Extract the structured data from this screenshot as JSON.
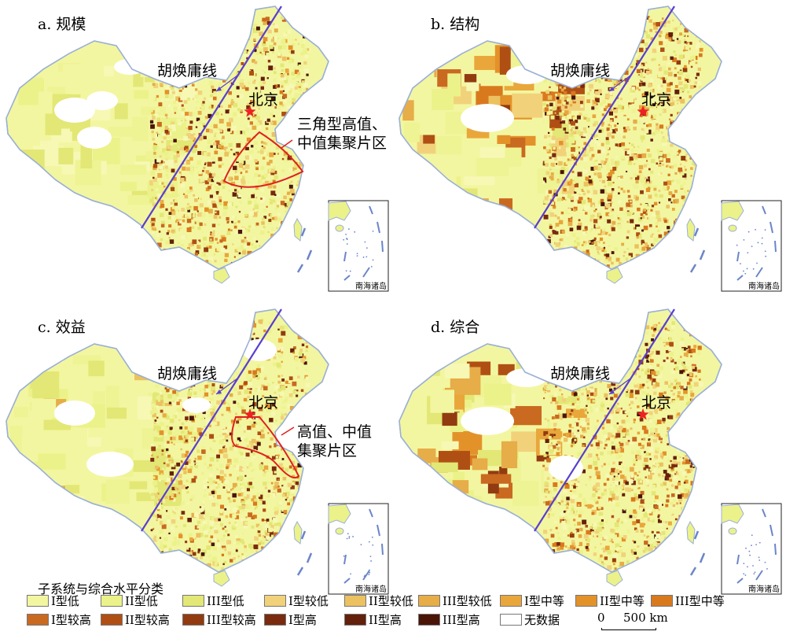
{
  "panels": [
    {
      "id": "a",
      "title": "a. 规模",
      "hu_line_label": "胡焕庸线",
      "beijing_label": "北京",
      "annotation": "三角型高值、中值集聚片区",
      "inset_label": "南海诸岛"
    },
    {
      "id": "b",
      "title": "b. 结构",
      "hu_line_label": "胡焕庸线",
      "beijing_label": "北京",
      "annotation": "",
      "inset_label": "南海诸岛"
    },
    {
      "id": "c",
      "title": "c. 效益",
      "hu_line_label": "胡焕庸线",
      "beijing_label": "北京",
      "annotation": "高值、中值集聚片区",
      "inset_label": "南海诸岛"
    },
    {
      "id": "d",
      "title": "d. 综合",
      "hu_line_label": "胡焕庸线",
      "beijing_label": "北京",
      "annotation": "",
      "inset_label": "南海诸岛"
    }
  ],
  "annotation_lines": {
    "a": [
      "三角型高值、",
      "中值集聚片区"
    ],
    "c": [
      "高值、中值",
      "集聚片区"
    ]
  },
  "legend": {
    "title": "子系统与综合水平分类",
    "items": [
      {
        "label": "I型低",
        "color": "#f3f6a0"
      },
      {
        "label": "II型低",
        "color": "#ecf28a"
      },
      {
        "label": "III型低",
        "color": "#e3e775"
      },
      {
        "label": "I型较低",
        "color": "#f1d27a"
      },
      {
        "label": "II型较低",
        "color": "#ecc160"
      },
      {
        "label": "III型较低",
        "color": "#e6ad48"
      },
      {
        "label": "I型中等",
        "color": "#e9a63b"
      },
      {
        "label": "II型中等",
        "color": "#e3922a"
      },
      {
        "label": "III型中等",
        "color": "#d9791e"
      },
      {
        "label": "I型较高",
        "color": "#c96a20"
      },
      {
        "label": "II型较高",
        "color": "#b04f14"
      },
      {
        "label": "III型较高",
        "color": "#923b10"
      },
      {
        "label": "I型高",
        "color": "#7a2a0e"
      },
      {
        "label": "II型高",
        "color": "#63200a"
      },
      {
        "label": "III型高",
        "color": "#4a1507"
      },
      {
        "label": "无数据",
        "color": "#ffffff"
      }
    ]
  },
  "scale": {
    "zero_label": "0",
    "dist_label": "500 km"
  },
  "colors": {
    "hu_line": "#5a3ed0",
    "beijing_star": "#ee2222",
    "annotation_outline": "#e02020",
    "border": "#9bb0d6"
  }
}
